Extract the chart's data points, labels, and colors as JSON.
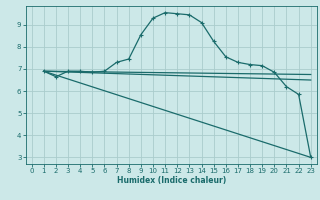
{
  "xlabel": "Humidex (Indice chaleur)",
  "bg_color": "#cce8e8",
  "grid_color": "#aacccc",
  "line_color": "#1a6b6b",
  "xlim": [
    -0.5,
    23.5
  ],
  "ylim": [
    2.7,
    9.85
  ],
  "xticks": [
    0,
    1,
    2,
    3,
    4,
    5,
    6,
    7,
    8,
    9,
    10,
    11,
    12,
    13,
    14,
    15,
    16,
    17,
    18,
    19,
    20,
    21,
    22,
    23
  ],
  "yticks": [
    3,
    4,
    5,
    6,
    7,
    8,
    9
  ],
  "line1_x": [
    1,
    2,
    3,
    4,
    5,
    6,
    7,
    8,
    9,
    10,
    11,
    12,
    13,
    14,
    15,
    16,
    17,
    18,
    19,
    20,
    21,
    22,
    23
  ],
  "line1_y": [
    6.9,
    6.65,
    6.9,
    6.9,
    6.85,
    6.9,
    7.3,
    7.45,
    8.55,
    9.3,
    9.55,
    9.5,
    9.45,
    9.1,
    8.25,
    7.55,
    7.3,
    7.2,
    7.15,
    6.85,
    6.2,
    5.85,
    3.0
  ],
  "line2_x": [
    1,
    23
  ],
  "line2_y": [
    6.9,
    6.75
  ],
  "line3_x": [
    1,
    23
  ],
  "line3_y": [
    6.9,
    6.5
  ],
  "line4_x": [
    1,
    23
  ],
  "line4_y": [
    6.9,
    3.0
  ]
}
